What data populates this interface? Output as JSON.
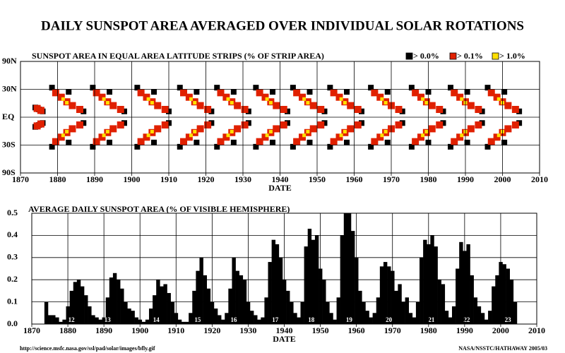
{
  "title": "DAILY SUNSPOT AREA AVERAGED OVER INDIVIDUAL SOLAR ROTATIONS",
  "chart_data": [
    {
      "type": "scatter",
      "title": "SUNSPOT AREA IN EQUAL AREA LATITUDE STRIPS (% OF STRIP AREA)",
      "x_label": "DATE",
      "yscale": "sine",
      "grid": true,
      "legend": "top-right",
      "xlim": [
        1870,
        2010
      ],
      "xticks": [
        1870,
        1880,
        1890,
        1900,
        1910,
        1920,
        1930,
        1940,
        1950,
        1960,
        1970,
        1980,
        1990,
        2000,
        2010
      ],
      "ylim": [
        -90,
        90
      ],
      "yticks": [
        {
          "value": 90,
          "label": "90N"
        },
        {
          "value": 30,
          "label": "30N"
        },
        {
          "value": 0,
          "label": "EQ"
        },
        {
          "value": -30,
          "label": "30S"
        },
        {
          "value": -90,
          "label": "90S"
        }
      ],
      "series": [
        {
          "name": "> 0.0%",
          "color": "#000000",
          "x": [
            1874,
            1875,
            1876,
            1874,
            1875,
            1876,
            1878.5,
            1883,
            1887,
            1878.5,
            1883,
            1887,
            1889.5,
            1894,
            1898,
            1889.5,
            1894,
            1898,
            1901.5,
            1906,
            1910,
            1901.5,
            1906,
            1910,
            1913,
            1917.5,
            1921.5,
            1913,
            1917.5,
            1921.5,
            1923,
            1927.5,
            1931.5,
            1923,
            1927.5,
            1931.5,
            1933.5,
            1938,
            1942,
            1933.5,
            1938,
            1942,
            1943.5,
            1948,
            1952,
            1943.5,
            1948,
            1952,
            1953.5,
            1958,
            1962,
            1953.5,
            1958,
            1962,
            1964.5,
            1969,
            1973,
            1964.5,
            1969,
            1973,
            1975.5,
            1980,
            1984,
            1975.5,
            1980,
            1984,
            1986,
            1990.5,
            1994.5,
            1986,
            1990.5,
            1994.5,
            1996,
            2000.5,
            2004.5,
            1996,
            2000.5,
            2004.5
          ],
          "y": [
            10,
            8,
            6,
            -10,
            -8,
            -6,
            32,
            27,
            6,
            -32,
            -27,
            -6,
            32,
            27,
            6,
            -32,
            -27,
            -6,
            32,
            27,
            6,
            -32,
            -27,
            -6,
            32,
            27,
            6,
            -32,
            -27,
            -6,
            32,
            27,
            6,
            -32,
            -27,
            -6,
            32,
            27,
            6,
            -32,
            -27,
            -6,
            32,
            27,
            6,
            -32,
            -27,
            -6,
            32,
            27,
            6,
            -32,
            -27,
            -6,
            32,
            27,
            6,
            -32,
            -27,
            -6,
            32,
            27,
            6,
            -32,
            -27,
            -6,
            32,
            27,
            6,
            -32,
            -27,
            -6,
            32,
            27,
            6,
            -32,
            -27,
            -6
          ]
        },
        {
          "name": "> 0.1%",
          "color": "#e02000",
          "x": [
            1874.5,
            1875.5,
            1874.5,
            1875.5,
            1879.5,
            1881,
            1882.5,
            1884,
            1886,
            1879.5,
            1881,
            1882.5,
            1884,
            1886,
            1890.5,
            1892,
            1893.5,
            1895,
            1897,
            1890.5,
            1892,
            1893.5,
            1895,
            1897,
            1902.5,
            1904,
            1905.5,
            1907,
            1909,
            1902.5,
            1904,
            1905.5,
            1907,
            1909,
            1914,
            1915.5,
            1917,
            1918.5,
            1920.5,
            1914,
            1915.5,
            1917,
            1918.5,
            1920.5,
            1924,
            1925.5,
            1927,
            1928.5,
            1930.5,
            1924,
            1925.5,
            1927,
            1928.5,
            1930.5,
            1934.5,
            1936,
            1937.5,
            1939,
            1941,
            1934.5,
            1936,
            1937.5,
            1939,
            1941,
            1944.5,
            1946,
            1947.5,
            1949,
            1951,
            1944.5,
            1946,
            1947.5,
            1949,
            1951,
            1954.5,
            1956,
            1957.5,
            1959,
            1961,
            1954.5,
            1956,
            1957.5,
            1959,
            1961,
            1965.5,
            1967,
            1968.5,
            1970,
            1972,
            1965.5,
            1967,
            1968.5,
            1970,
            1972,
            1976.5,
            1978,
            1979.5,
            1981,
            1983,
            1976.5,
            1978,
            1979.5,
            1981,
            1983,
            1987,
            1988.5,
            1990,
            1991.5,
            1993.5,
            1987,
            1988.5,
            1990,
            1991.5,
            1993.5,
            1997,
            1998.5,
            2000,
            2001.5,
            2003.5,
            1997,
            1998.5,
            2000,
            2001.5,
            2003.5
          ],
          "y": [
            9,
            7,
            -9,
            -7,
            26,
            21,
            16,
            12,
            8,
            -26,
            -21,
            -16,
            -12,
            -8,
            26,
            21,
            16,
            12,
            8,
            -26,
            -21,
            -16,
            -12,
            -8,
            26,
            21,
            16,
            12,
            8,
            -26,
            -21,
            -16,
            -12,
            -8,
            26,
            21,
            16,
            12,
            8,
            -26,
            -21,
            -16,
            -12,
            -8,
            26,
            21,
            16,
            12,
            8,
            -26,
            -21,
            -16,
            -12,
            -8,
            26,
            21,
            16,
            12,
            8,
            -26,
            -21,
            -16,
            -12,
            -8,
            26,
            21,
            16,
            12,
            8,
            -26,
            -21,
            -16,
            -12,
            -8,
            26,
            21,
            16,
            12,
            8,
            -26,
            -21,
            -16,
            -12,
            -8,
            26,
            21,
            16,
            12,
            8,
            -26,
            -21,
            -16,
            -12,
            -8,
            26,
            21,
            16,
            12,
            8,
            -26,
            -21,
            -16,
            -12,
            -8,
            26,
            21,
            16,
            12,
            8,
            -26,
            -21,
            -16,
            -12,
            -8,
            26,
            21,
            16,
            12,
            8,
            -26,
            -21,
            -16,
            -12,
            -8
          ]
        },
        {
          "name": "> 1.0%",
          "color": "#ffe000",
          "x": [
            1881.5,
            1882.5,
            1881.5,
            1882.5,
            1892.5,
            1893.5,
            1892.5,
            1893.5,
            1904.5,
            1905.5,
            1904.5,
            1905.5,
            1916,
            1917,
            1916,
            1917,
            1926,
            1927,
            1926,
            1927,
            1936.5,
            1937.5,
            1936.5,
            1937.5,
            1946.5,
            1947.5,
            1946.5,
            1947.5,
            1956.5,
            1957.5,
            1956.5,
            1957.5,
            1967.5,
            1968.5,
            1967.5,
            1968.5,
            1978.5,
            1979.5,
            1978.5,
            1979.5,
            1989,
            1990,
            1989,
            1990,
            1999,
            2000,
            1999,
            2000
          ],
          "y": [
            19,
            15,
            -19,
            -15,
            19,
            15,
            -19,
            -15,
            19,
            15,
            -19,
            -15,
            19,
            15,
            -19,
            -15,
            19,
            15,
            -19,
            -15,
            19,
            15,
            -19,
            -15,
            19,
            15,
            -19,
            -15,
            19,
            15,
            -19,
            -15,
            19,
            15,
            -19,
            -15,
            19,
            15,
            -19,
            -15,
            19,
            15,
            -19,
            -15,
            19,
            15,
            -19,
            -15
          ]
        }
      ]
    },
    {
      "type": "bar",
      "title": "AVERAGE DAILY SUNSPOT AREA (% OF VISIBLE HEMISPHERE)",
      "x_label": "DATE",
      "color": "#000000",
      "grid": true,
      "xlim": [
        1870,
        2010
      ],
      "xticks": [
        1870,
        1880,
        1890,
        1900,
        1910,
        1920,
        1930,
        1940,
        1950,
        1960,
        1970,
        1980,
        1990,
        2000,
        2010
      ],
      "ylim": [
        0,
        0.5
      ],
      "yticks": [
        {
          "value": 0,
          "label": "0.0"
        },
        0.1,
        0.2,
        0.3,
        0.4,
        0.5
      ],
      "x": [
        1874,
        1875,
        1876,
        1877,
        1878,
        1879,
        1880,
        1881,
        1882,
        1883,
        1884,
        1885,
        1886,
        1887,
        1888,
        1889,
        1890,
        1891,
        1892,
        1893,
        1894,
        1895,
        1896,
        1897,
        1898,
        1899,
        1900,
        1901,
        1902,
        1903,
        1904,
        1905,
        1906,
        1907,
        1908,
        1909,
        1910,
        1911,
        1912,
        1913,
        1914,
        1915,
        1916,
        1917,
        1918,
        1919,
        1920,
        1921,
        1922,
        1923,
        1924,
        1925,
        1926,
        1927,
        1928,
        1929,
        1930,
        1931,
        1932,
        1933,
        1934,
        1935,
        1936,
        1937,
        1938,
        1939,
        1940,
        1941,
        1942,
        1943,
        1944,
        1945,
        1946,
        1947,
        1948,
        1949,
        1950,
        1951,
        1952,
        1953,
        1954,
        1955,
        1956,
        1957,
        1958,
        1959,
        1960,
        1961,
        1962,
        1963,
        1964,
        1965,
        1966,
        1967,
        1968,
        1969,
        1970,
        1971,
        1972,
        1973,
        1974,
        1975,
        1976,
        1977,
        1978,
        1979,
        1980,
        1981,
        1982,
        1983,
        1984,
        1985,
        1986,
        1987,
        1988,
        1989,
        1990,
        1991,
        1992,
        1993,
        1994,
        1995,
        1996,
        1997,
        1998,
        1999,
        2000,
        2001,
        2002,
        2003,
        2004
      ],
      "values": [
        0.1,
        0.04,
        0.04,
        0.03,
        0.01,
        0.02,
        0.08,
        0.15,
        0.19,
        0.2,
        0.17,
        0.13,
        0.08,
        0.04,
        0.03,
        0.02,
        0.03,
        0.12,
        0.21,
        0.23,
        0.2,
        0.16,
        0.1,
        0.07,
        0.06,
        0.03,
        0.02,
        0.01,
        0.02,
        0.07,
        0.13,
        0.2,
        0.17,
        0.18,
        0.14,
        0.1,
        0.05,
        0.02,
        0.01,
        0.01,
        0.05,
        0.15,
        0.24,
        0.3,
        0.22,
        0.16,
        0.1,
        0.07,
        0.04,
        0.02,
        0.05,
        0.16,
        0.3,
        0.24,
        0.22,
        0.2,
        0.1,
        0.06,
        0.04,
        0.02,
        0.03,
        0.12,
        0.28,
        0.38,
        0.36,
        0.3,
        0.2,
        0.15,
        0.1,
        0.05,
        0.03,
        0.1,
        0.35,
        0.43,
        0.38,
        0.4,
        0.25,
        0.2,
        0.1,
        0.05,
        0.02,
        0.12,
        0.4,
        0.5,
        0.5,
        0.42,
        0.3,
        0.15,
        0.1,
        0.06,
        0.03,
        0.05,
        0.12,
        0.26,
        0.28,
        0.26,
        0.24,
        0.15,
        0.18,
        0.1,
        0.12,
        0.05,
        0.03,
        0.1,
        0.3,
        0.38,
        0.36,
        0.4,
        0.35,
        0.2,
        0.18,
        0.06,
        0.03,
        0.08,
        0.25,
        0.37,
        0.33,
        0.36,
        0.22,
        0.12,
        0.08,
        0.05,
        0.02,
        0.06,
        0.17,
        0.22,
        0.28,
        0.27,
        0.25,
        0.2,
        0.1
      ],
      "cycles": {
        "x": [
          1881,
          1891,
          1904.5,
          1916,
          1926,
          1937.5,
          1947.5,
          1958,
          1969,
          1980.8,
          1990.6,
          2002
        ],
        "labels": [
          "12",
          "13",
          "14",
          "15",
          "16",
          "17",
          "18",
          "19",
          "20",
          "21",
          "22",
          "23"
        ]
      }
    }
  ],
  "footer": {
    "url": "http://science.msfc.nasa.gov/ssl/pad/solar/images/bfly.gif",
    "credit": "NASA/NSSTC/HATHAWAY  2005/03"
  }
}
